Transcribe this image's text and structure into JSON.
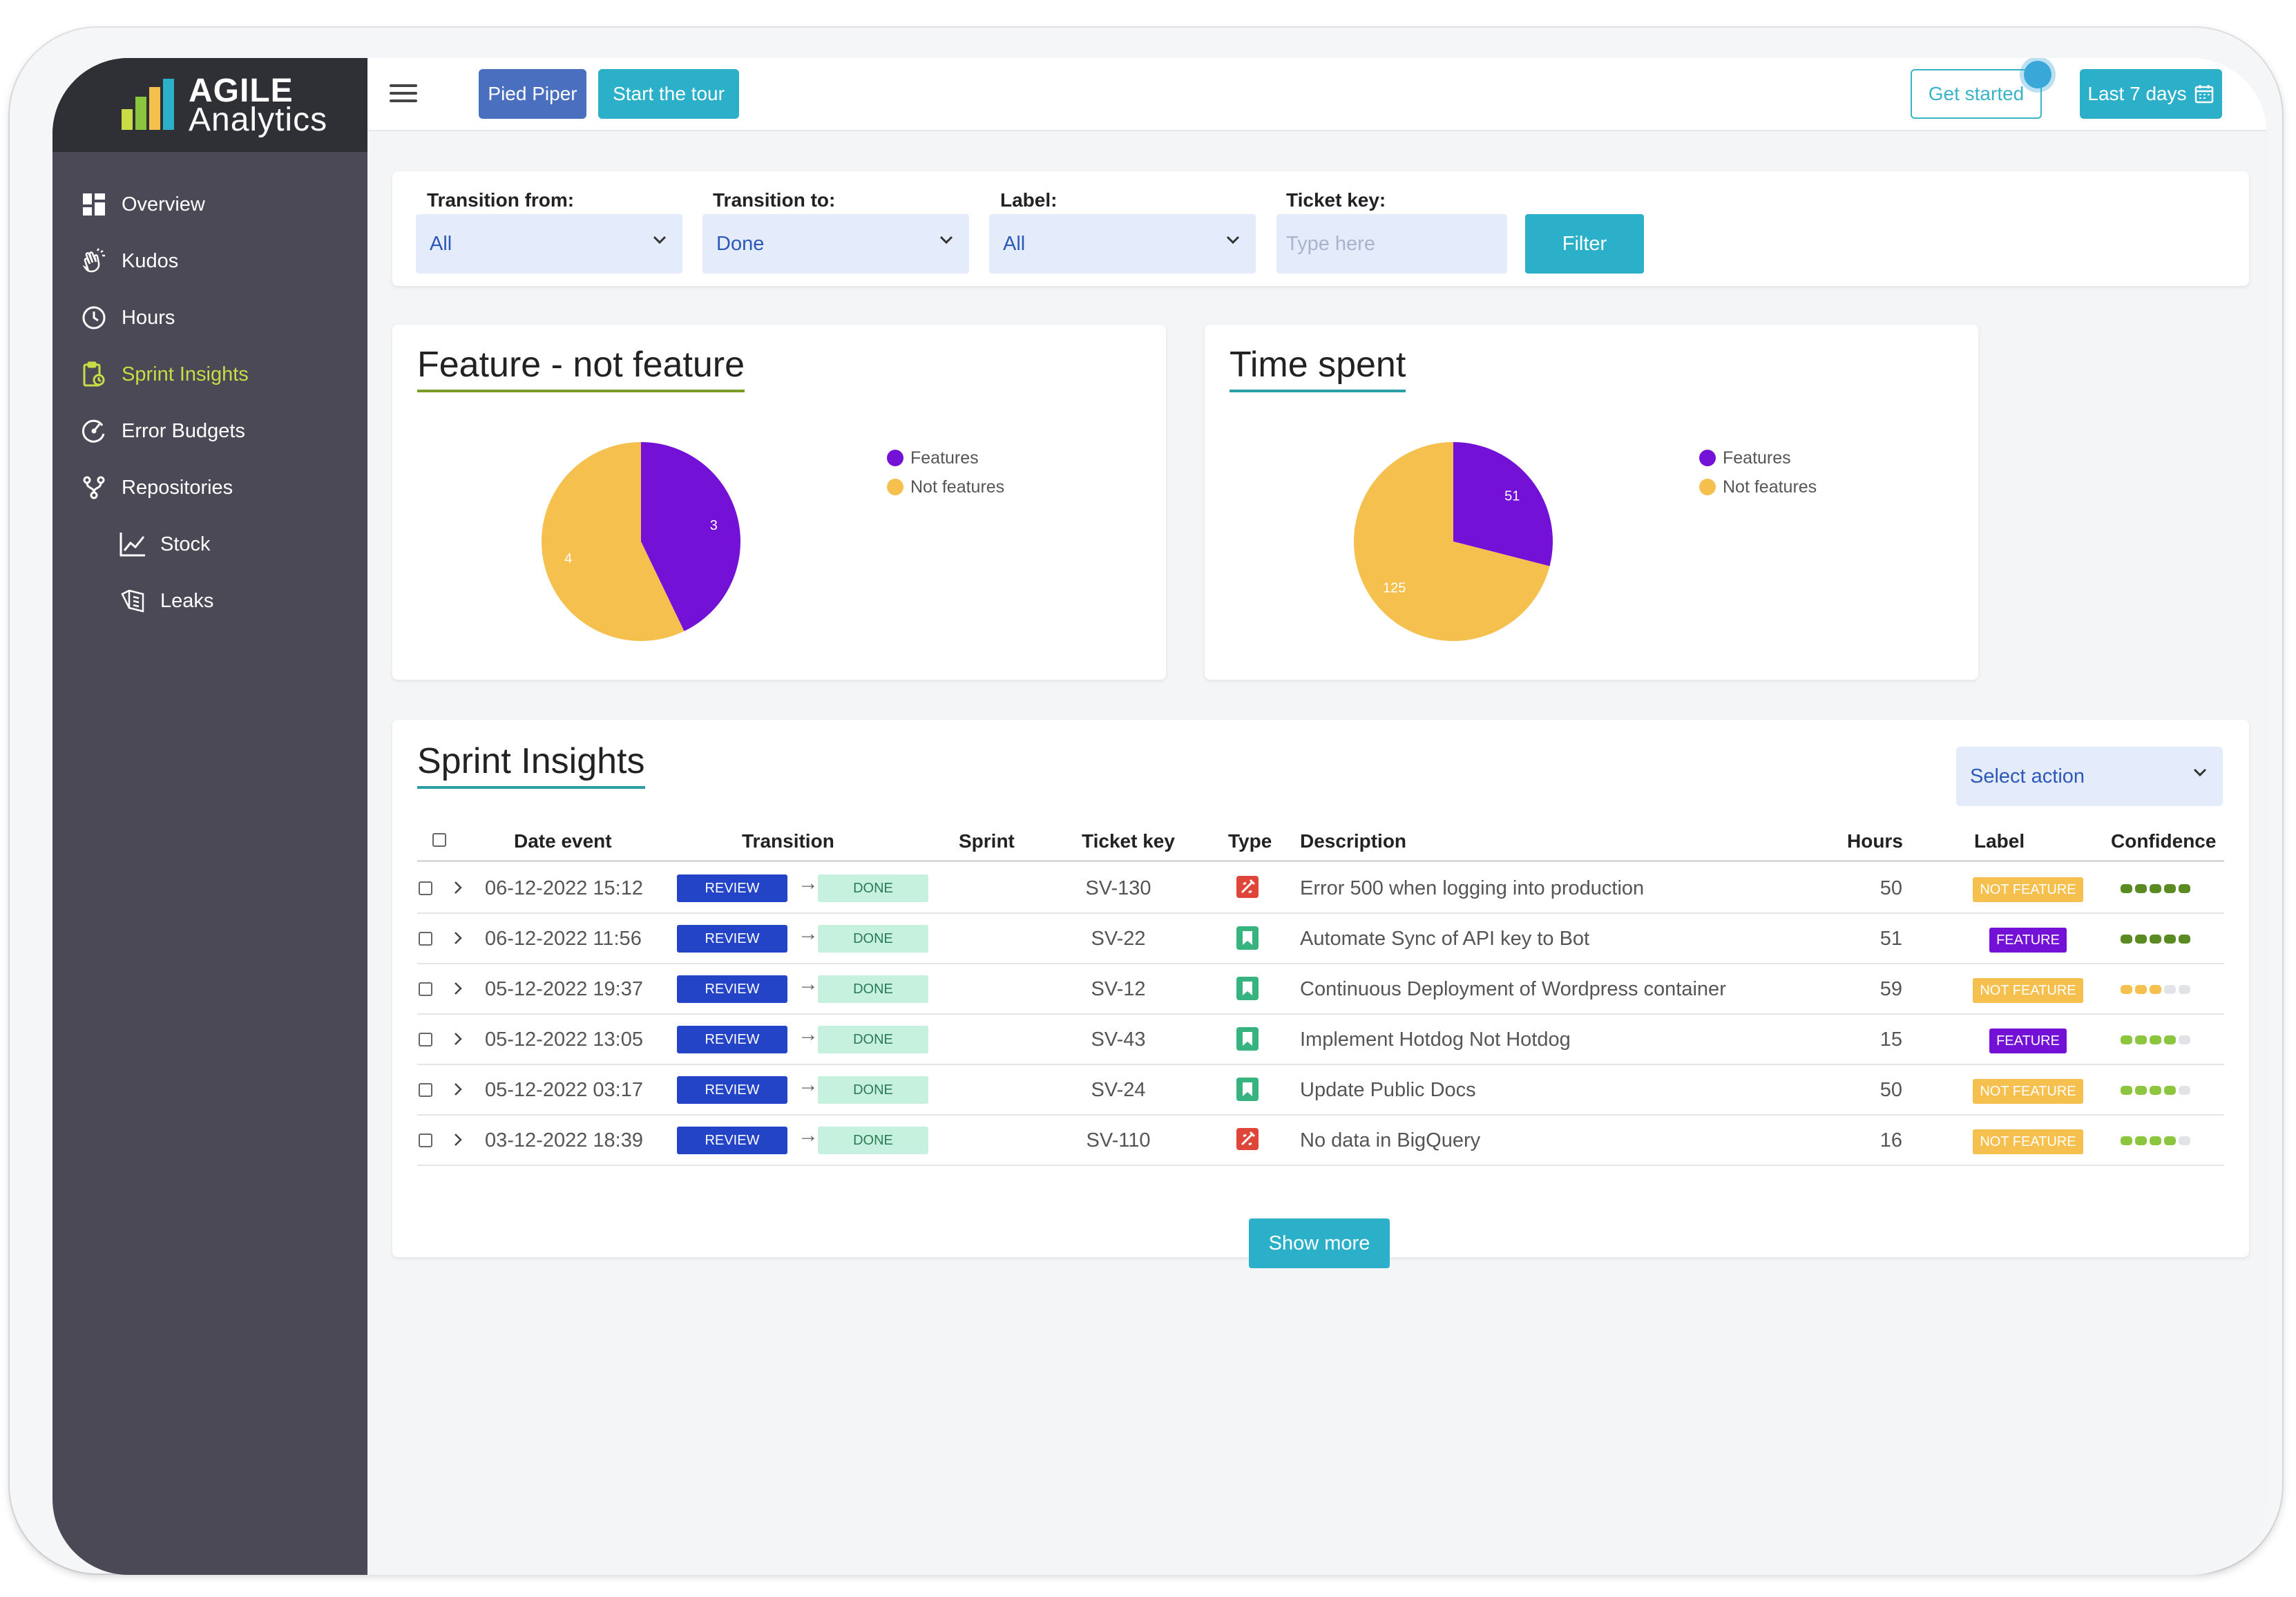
{
  "app": {
    "logo_word1": "AGILE",
    "logo_word2": "Analytics",
    "accent": "#2cb0c9",
    "active_color": "#c9dc45"
  },
  "sidebar": {
    "items": [
      {
        "label": "Overview",
        "icon": "dashboard-icon"
      },
      {
        "label": "Kudos",
        "icon": "clap-icon"
      },
      {
        "label": "Hours",
        "icon": "clock-icon"
      },
      {
        "label": "Sprint Insights",
        "icon": "clipboard-icon",
        "active": true
      },
      {
        "label": "Error Budgets",
        "icon": "gauge-icon"
      },
      {
        "label": "Repositories",
        "icon": "branch-icon"
      },
      {
        "label": "Stock",
        "icon": "chart-line-icon"
      },
      {
        "label": "Leaks",
        "icon": "leak-icon"
      }
    ]
  },
  "topbar": {
    "org_button": "Pied Piper",
    "tour_button": "Start the tour",
    "get_started": "Get started",
    "date_range": "Last 7 days"
  },
  "filters": {
    "from_label": "Transition from:",
    "from_value": "All",
    "to_label": "Transition to:",
    "to_value": "Done",
    "label_label": "Label:",
    "label_value": "All",
    "key_label": "Ticket key:",
    "key_placeholder": "Type here",
    "filter_button": "Filter"
  },
  "chart_data": [
    {
      "type": "pie",
      "title": "Feature - not feature",
      "categories": [
        "Features",
        "Not features"
      ],
      "values": [
        3,
        4
      ],
      "colors": [
        "#7411d6",
        "#f5c04e"
      ],
      "legend": "top-right"
    },
    {
      "type": "pie",
      "title": "Time spent",
      "categories": [
        "Features",
        "Not features"
      ],
      "values": [
        51,
        125
      ],
      "colors": [
        "#7411d6",
        "#f5c04e"
      ],
      "legend": "top-right"
    }
  ],
  "table": {
    "title": "Sprint Insights",
    "select_action": "Select action",
    "columns": [
      "Date event",
      "Transition",
      "Sprint",
      "Ticket key",
      "Type",
      "Description",
      "Hours",
      "Label",
      "Confidence"
    ],
    "rows": [
      {
        "date": "06-12-2022 15:12",
        "from": "REVIEW",
        "to": "DONE",
        "sprint": "",
        "key": "SV-130",
        "type": "bug",
        "description": "Error 500 when logging into production",
        "hours": "50",
        "label": "NOT FEATURE",
        "confidence": 5,
        "conf_color": "#5a8a22"
      },
      {
        "date": "06-12-2022 11:56",
        "from": "REVIEW",
        "to": "DONE",
        "sprint": "",
        "key": "SV-22",
        "type": "story",
        "description": "Automate Sync of API key to Bot",
        "hours": "51",
        "label": "FEATURE",
        "confidence": 5,
        "conf_color": "#5a8a22"
      },
      {
        "date": "05-12-2022 19:37",
        "from": "REVIEW",
        "to": "DONE",
        "sprint": "",
        "key": "SV-12",
        "type": "story",
        "description": "Continuous Deployment of Wordpress container",
        "hours": "59",
        "label": "NOT FEATURE",
        "confidence": 3,
        "conf_color": "#f5c04e"
      },
      {
        "date": "05-12-2022 13:05",
        "from": "REVIEW",
        "to": "DONE",
        "sprint": "",
        "key": "SV-43",
        "type": "story",
        "description": "Implement Hotdog Not Hotdog",
        "hours": "15",
        "label": "FEATURE",
        "confidence": 4,
        "conf_color": "#8cc63f"
      },
      {
        "date": "05-12-2022 03:17",
        "from": "REVIEW",
        "to": "DONE",
        "sprint": "",
        "key": "SV-24",
        "type": "story",
        "description": "Update Public Docs",
        "hours": "50",
        "label": "NOT FEATURE",
        "confidence": 4,
        "conf_color": "#8cc63f"
      },
      {
        "date": "03-12-2022 18:39",
        "from": "REVIEW",
        "to": "DONE",
        "sprint": "",
        "key": "SV-110",
        "type": "bug",
        "description": "No data in BigQuery",
        "hours": "16",
        "label": "NOT FEATURE",
        "confidence": 4,
        "conf_color": "#8cc63f"
      }
    ],
    "show_more": "Show more"
  }
}
